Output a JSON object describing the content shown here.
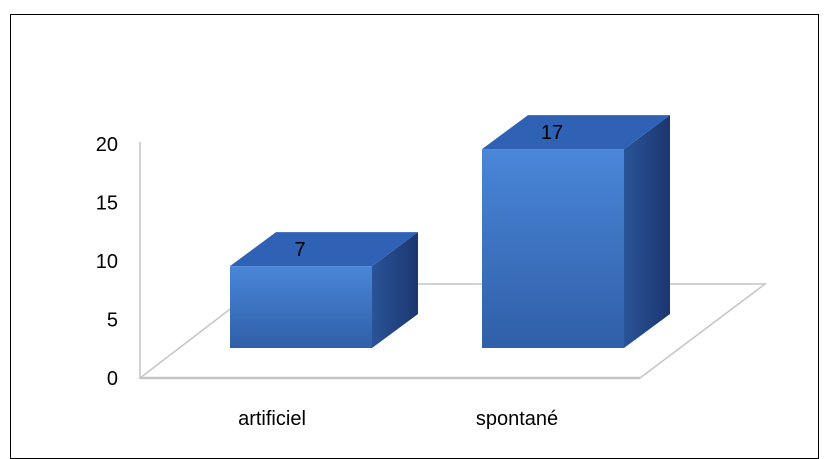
{
  "chart_data": {
    "type": "bar",
    "title": "",
    "xlabel": "",
    "ylabel": "",
    "categories": [
      "artificiel",
      "spontané"
    ],
    "values": [
      7,
      17
    ],
    "data_labels": [
      "7",
      "17"
    ],
    "ylim": [
      0,
      20
    ],
    "y_ticks": [
      0,
      5,
      10,
      15,
      20
    ],
    "y_tick_labels": [
      "0",
      "5",
      "10",
      "15",
      "20"
    ],
    "style": "3d-column",
    "grid": false,
    "legend": "none",
    "colors": {
      "bar_front_top": "#4a86d8",
      "bar_front_bottom": "#2f5fa8",
      "bar_top": "#2f62b5",
      "bar_side": "#1f3f7a",
      "axis": "#bfbfbf",
      "border": "#000000"
    }
  }
}
